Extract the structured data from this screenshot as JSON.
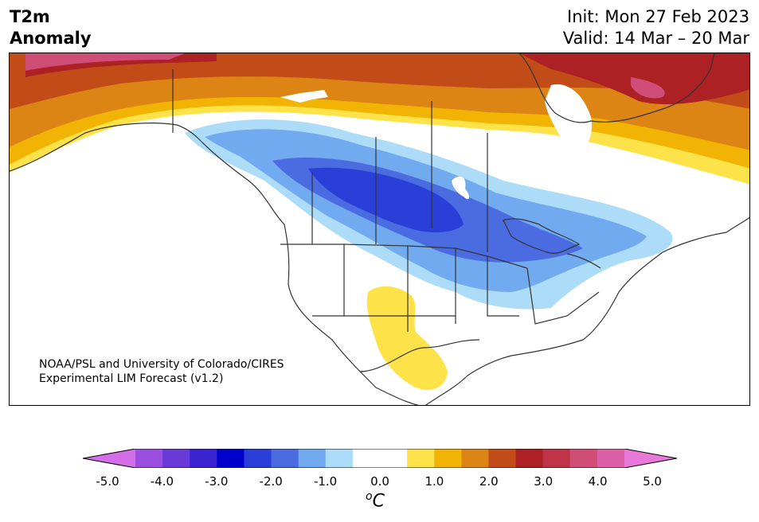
{
  "title": {
    "line1": "T2m",
    "line2": "Anomaly"
  },
  "dates": {
    "init": "Init: Mon 27 Feb 2023",
    "valid": "Valid: 14 Mar – 20 Mar"
  },
  "credit": {
    "line1": "NOAA/PSL and University of Colorado/CIRES",
    "line2": "Experimental LIM Forecast (v1.2)"
  },
  "colorbar": {
    "unit_sup": "o",
    "unit_base": "C",
    "colors": [
      "#d36ee8",
      "#9b4fdf",
      "#6a3ad8",
      "#3a22d0",
      "#0000cc",
      "#2a3fd8",
      "#4a6ce0",
      "#72aaf0",
      "#acdcf8",
      "#ffffff",
      "#ffffff",
      "#fee24a",
      "#f2b404",
      "#dc8414",
      "#c24c18",
      "#ad2024",
      "#c0344a",
      "#cf4d77",
      "#dc60a6",
      "#e778d8"
    ],
    "tick_values": [
      "-5.0",
      "-4.0",
      "-3.0",
      "-2.0",
      "-1.0",
      "0.0",
      "1.0",
      "2.0",
      "3.0",
      "4.0",
      "5.0"
    ],
    "range": [
      -5,
      5
    ]
  },
  "map": {
    "region": "North America",
    "anomaly_regions": [
      {
        "color": "#c24c18",
        "value": "2.5"
      },
      {
        "color": "#ad2024",
        "value": "3.0"
      },
      {
        "color": "#cf4d77",
        "value": "4.0"
      },
      {
        "color": "#dc8414",
        "value": "2.0"
      },
      {
        "color": "#f2b404",
        "value": "1.5"
      },
      {
        "color": "#fee24a",
        "value": "1.0"
      },
      {
        "color": "#acdcf8",
        "value": "-1.0"
      },
      {
        "color": "#72aaf0",
        "value": "-1.5"
      },
      {
        "color": "#4a6ce0",
        "value": "-2.0"
      },
      {
        "color": "#2a3fd8",
        "value": "-2.5"
      }
    ]
  }
}
